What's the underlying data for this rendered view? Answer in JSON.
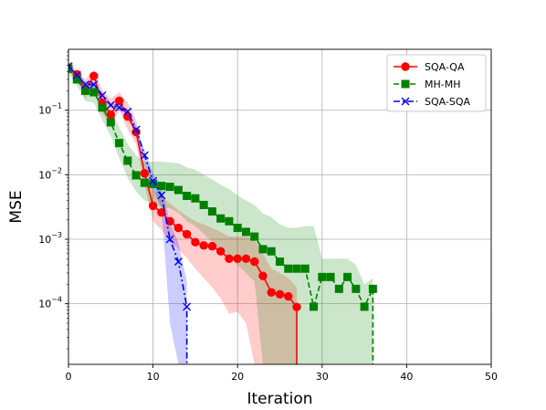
{
  "chart_data": {
    "type": "line",
    "title": "",
    "xlabel": "Iteration",
    "ylabel": "MSE",
    "xlim": [
      0,
      50
    ],
    "ylim": [
      1.15e-05,
      0.88
    ],
    "yscale": "log",
    "x_ticks": [
      0,
      10,
      20,
      30,
      40,
      50
    ],
    "x_tick_labels": [
      "0",
      "10",
      "20",
      "30",
      "40",
      "50"
    ],
    "y_ticks": [
      0.0001,
      0.001,
      0.01,
      0.1
    ],
    "y_tick_labels": [
      {
        "base": "10",
        "exp": "−4"
      },
      {
        "base": "10",
        "exp": "−3"
      },
      {
        "base": "10",
        "exp": "−2"
      },
      {
        "base": "10",
        "exp": "−1"
      }
    ],
    "grid": true,
    "legend_position": "top-right",
    "series": [
      {
        "name": "SQA-QA",
        "color": "#ff0000",
        "marker": "circle",
        "linestyle": "solid",
        "x": [
          0,
          1,
          2,
          3,
          4,
          5,
          6,
          7,
          8,
          9,
          10,
          11,
          12,
          13,
          14,
          15,
          16,
          17,
          18,
          19,
          20,
          21,
          22,
          23,
          24,
          25,
          26,
          27
        ],
        "y": [
          0.46,
          0.36,
          0.21,
          0.34,
          0.13,
          0.085,
          0.14,
          0.08,
          0.046,
          0.0105,
          0.0033,
          0.0026,
          0.0019,
          0.0015,
          0.0012,
          0.0009,
          0.0008,
          0.00078,
          0.00065,
          0.0005,
          0.0005,
          0.0005,
          0.00045,
          0.00027,
          0.00015,
          0.00014,
          0.00013,
          8.9e-05
        ],
        "band_upper": [
          0.52,
          0.42,
          0.3,
          0.42,
          0.2,
          0.15,
          0.19,
          0.13,
          0.07,
          0.017,
          0.0058,
          0.0046,
          0.0036,
          0.0028,
          0.0023,
          0.0019,
          0.0017,
          0.0015,
          0.0013,
          0.0011,
          0.0011,
          0.0011,
          0.001,
          0.0006,
          0.00035,
          0.0003,
          0.00025,
          0.00018
        ],
        "band_lower": [
          0.4,
          0.3,
          0.15,
          0.27,
          0.09,
          0.055,
          0.1,
          0.05,
          0.03,
          0.0068,
          0.0019,
          0.0014,
          0.00095,
          0.0007,
          0.00052,
          0.00035,
          0.00025,
          0.00018,
          0.00012,
          7e-05,
          7.5e-05,
          5e-05,
          1.15e-05,
          1.15e-05,
          1.15e-05,
          1.15e-05,
          1.15e-05,
          1.15e-05
        ]
      },
      {
        "name": "MH-MH",
        "color": "#008000",
        "marker": "square",
        "linestyle": "dashed",
        "x": [
          0,
          1,
          2,
          3,
          4,
          5,
          6,
          7,
          8,
          9,
          10,
          11,
          12,
          13,
          14,
          15,
          16,
          17,
          18,
          19,
          20,
          21,
          22,
          23,
          24,
          25,
          26,
          27,
          28,
          29,
          30,
          31,
          32,
          33,
          34,
          35,
          36
        ],
        "y": [
          0.44,
          0.3,
          0.2,
          0.19,
          0.11,
          0.065,
          0.031,
          0.0165,
          0.0098,
          0.0075,
          0.0072,
          0.0067,
          0.0065,
          0.0058,
          0.0047,
          0.0043,
          0.0034,
          0.0027,
          0.0021,
          0.0019,
          0.0015,
          0.0013,
          0.0011,
          0.0007,
          0.00065,
          0.00045,
          0.00035,
          0.00035,
          0.00035,
          9e-05,
          0.00026,
          0.00026,
          0.00017,
          0.00026,
          0.00017,
          9e-05,
          0.00017
        ],
        "band_upper": [
          0.5,
          0.36,
          0.27,
          0.25,
          0.16,
          0.1,
          0.055,
          0.03,
          0.02,
          0.016,
          0.016,
          0.016,
          0.0155,
          0.015,
          0.013,
          0.012,
          0.01,
          0.0085,
          0.007,
          0.006,
          0.0048,
          0.004,
          0.0034,
          0.0025,
          0.0022,
          0.0017,
          0.0015,
          0.0015,
          0.0016,
          0.0016,
          0.0005,
          0.0005,
          0.0005,
          0.0005,
          0.0004,
          0.0002,
          0.00025
        ],
        "band_lower": [
          0.38,
          0.24,
          0.14,
          0.13,
          0.07,
          0.04,
          0.018,
          0.009,
          0.0055,
          0.004,
          0.0035,
          0.0032,
          0.003,
          0.0026,
          0.0019,
          0.0016,
          0.0012,
          0.0009,
          0.00065,
          0.00055,
          0.0004,
          0.0003,
          0.00022,
          1.15e-05,
          1.15e-05,
          1.15e-05,
          1.15e-05,
          1.15e-05,
          1.15e-05,
          1.15e-05,
          1.15e-05,
          1.15e-05,
          1.15e-05,
          1.15e-05,
          1.15e-05,
          1.15e-05,
          1.15e-05
        ]
      },
      {
        "name": "SQA-SQA",
        "color": "#0000ff",
        "marker": "x",
        "linestyle": "dashdot",
        "x": [
          0,
          1,
          2,
          3,
          4,
          5,
          6,
          7,
          8,
          9,
          10,
          11,
          12,
          13,
          14
        ],
        "y": [
          0.48,
          0.35,
          0.25,
          0.25,
          0.17,
          0.12,
          0.11,
          0.095,
          0.05,
          0.02,
          0.008,
          0.0048,
          0.001,
          0.00045,
          9e-05
        ],
        "band_upper": [
          0.52,
          0.38,
          0.28,
          0.28,
          0.19,
          0.13,
          0.12,
          0.105,
          0.058,
          0.024,
          0.0105,
          0.0068,
          0.0018,
          0.0009,
          0.00022
        ],
        "band_lower": [
          0.44,
          0.32,
          0.22,
          0.22,
          0.15,
          0.11,
          0.1,
          0.085,
          0.042,
          0.016,
          0.006,
          0.003,
          5e-05,
          1.15e-05,
          1.15e-05
        ]
      }
    ]
  }
}
